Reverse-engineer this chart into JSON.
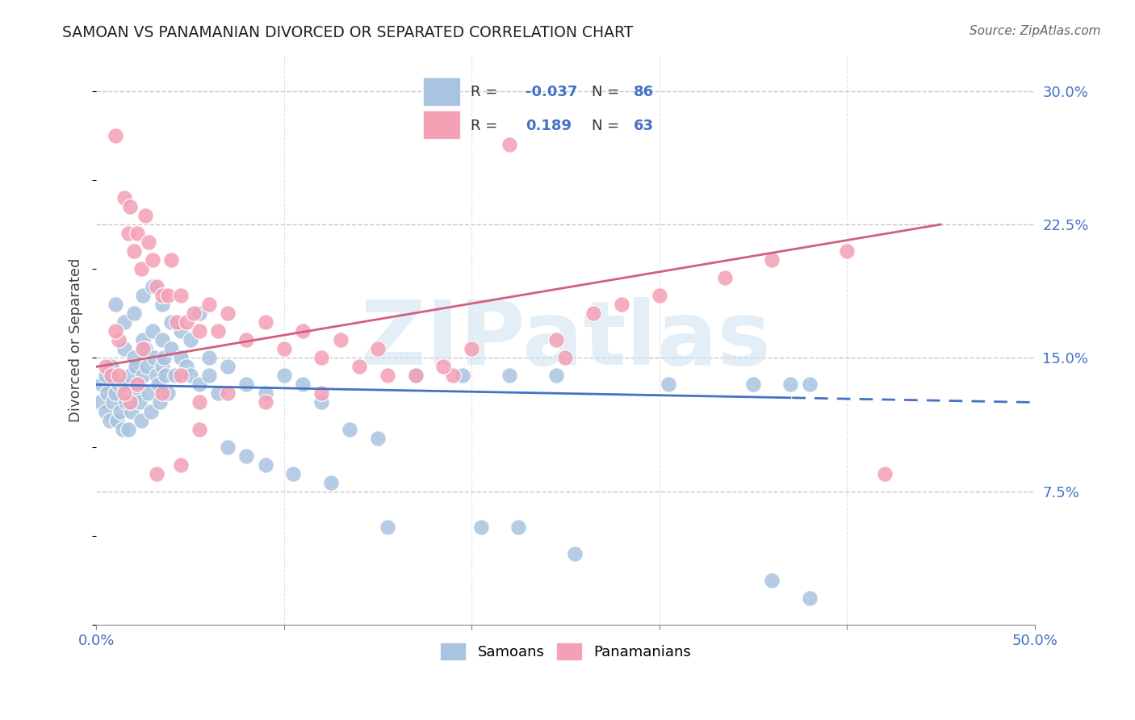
{
  "title": "SAMOAN VS PANAMANIAN DIVORCED OR SEPARATED CORRELATION CHART",
  "source": "Source: ZipAtlas.com",
  "ylabel": "Divorced or Separated",
  "watermark": "ZIPatlas",
  "xlim": [
    0.0,
    50.0
  ],
  "ylim": [
    0.0,
    32.0
  ],
  "ytick_values": [
    7.5,
    15.0,
    22.5,
    30.0
  ],
  "ytick_labels": [
    "7.5%",
    "15.0%",
    "22.5%",
    "30.0%"
  ],
  "xtick_values": [
    0,
    10,
    20,
    30,
    40,
    50
  ],
  "xtick_labels": [
    "0.0%",
    "",
    "",
    "",
    "",
    "50.0%"
  ],
  "legend_r_samoan": "-0.037",
  "legend_n_samoan": "86",
  "legend_r_panamanian": "0.189",
  "legend_n_panamanian": "63",
  "samoan_color": "#a8c4e0",
  "panamanian_color": "#f4a0b5",
  "samoan_line_color": "#4472c4",
  "panamanian_line_color": "#d06080",
  "background_color": "#ffffff",
  "grid_color": "#c8c8c8",
  "samoan_x": [
    0.2,
    0.3,
    0.5,
    0.5,
    0.6,
    0.7,
    0.8,
    0.9,
    1.0,
    1.1,
    1.2,
    1.3,
    1.4,
    1.5,
    1.5,
    1.6,
    1.7,
    1.8,
    1.9,
    2.0,
    2.1,
    2.2,
    2.3,
    2.4,
    2.5,
    2.5,
    2.6,
    2.7,
    2.8,
    2.9,
    3.0,
    3.1,
    3.2,
    3.3,
    3.4,
    3.5,
    3.5,
    3.6,
    3.7,
    3.8,
    4.0,
    4.2,
    4.5,
    4.8,
    5.0,
    5.5,
    6.0,
    6.5,
    7.0,
    8.0,
    9.0,
    10.0,
    11.0,
    12.0,
    13.5,
    15.0,
    17.0,
    19.5,
    22.0,
    24.5,
    30.5,
    35.0,
    37.0,
    38.0,
    1.0,
    1.5,
    2.0,
    2.5,
    3.0,
    3.5,
    4.0,
    4.5,
    5.0,
    5.5,
    6.0,
    7.0,
    8.0,
    9.0,
    10.5,
    12.5,
    15.5,
    20.5,
    22.5,
    25.5,
    36.0,
    38.0
  ],
  "samoan_y": [
    12.5,
    13.5,
    12.0,
    14.0,
    13.0,
    11.5,
    14.5,
    12.5,
    13.0,
    11.5,
    13.5,
    12.0,
    11.0,
    15.5,
    13.5,
    12.5,
    11.0,
    14.0,
    12.0,
    15.0,
    14.5,
    13.0,
    12.5,
    11.5,
    16.0,
    14.0,
    15.5,
    14.5,
    13.0,
    12.0,
    16.5,
    15.0,
    14.0,
    13.5,
    12.5,
    16.0,
    14.5,
    15.0,
    14.0,
    13.0,
    15.5,
    14.0,
    15.0,
    14.5,
    14.0,
    13.5,
    14.0,
    13.0,
    14.5,
    13.5,
    13.0,
    14.0,
    13.5,
    12.5,
    11.0,
    10.5,
    14.0,
    14.0,
    14.0,
    14.0,
    13.5,
    13.5,
    13.5,
    13.5,
    18.0,
    17.0,
    17.5,
    18.5,
    19.0,
    18.0,
    17.0,
    16.5,
    16.0,
    17.5,
    15.0,
    10.0,
    9.5,
    9.0,
    8.5,
    8.0,
    5.5,
    5.5,
    5.5,
    4.0,
    2.5,
    1.5
  ],
  "panamanian_x": [
    0.5,
    0.8,
    1.0,
    1.2,
    1.5,
    1.7,
    1.8,
    2.0,
    2.2,
    2.4,
    2.6,
    2.8,
    3.0,
    3.2,
    3.5,
    3.8,
    4.0,
    4.3,
    4.5,
    4.8,
    5.2,
    5.5,
    6.0,
    6.5,
    7.0,
    8.0,
    9.0,
    10.0,
    11.0,
    12.0,
    13.0,
    14.0,
    15.0,
    17.0,
    19.0,
    22.0,
    25.0,
    1.2,
    1.8,
    2.5,
    3.5,
    4.5,
    5.5,
    7.0,
    9.0,
    12.0,
    15.5,
    18.5,
    20.0,
    24.5,
    26.5,
    28.0,
    30.0,
    33.5,
    36.0,
    40.0,
    42.0,
    1.0,
    1.5,
    2.2,
    3.2,
    4.5,
    5.5
  ],
  "panamanian_y": [
    14.5,
    14.0,
    27.5,
    14.0,
    24.0,
    22.0,
    23.5,
    21.0,
    22.0,
    20.0,
    23.0,
    21.5,
    20.5,
    19.0,
    18.5,
    18.5,
    20.5,
    17.0,
    18.5,
    17.0,
    17.5,
    16.5,
    18.0,
    16.5,
    17.5,
    16.0,
    17.0,
    15.5,
    16.5,
    15.0,
    16.0,
    14.5,
    15.5,
    14.0,
    14.0,
    27.0,
    15.0,
    16.0,
    12.5,
    15.5,
    13.0,
    14.0,
    12.5,
    13.0,
    12.5,
    13.0,
    14.0,
    14.5,
    15.5,
    16.0,
    17.5,
    18.0,
    18.5,
    19.5,
    20.5,
    21.0,
    8.5,
    16.5,
    13.0,
    13.5,
    8.5,
    9.0,
    11.0
  ],
  "samoan_line_x0": 0.0,
  "samoan_line_x1": 50.0,
  "samoan_line_y0": 13.5,
  "samoan_line_y1": 12.5,
  "samoan_dash_start": 37.0,
  "panamanian_line_x0": 0.0,
  "panamanian_line_x1": 45.0,
  "panamanian_line_y0": 14.5,
  "panamanian_line_y1": 22.5
}
